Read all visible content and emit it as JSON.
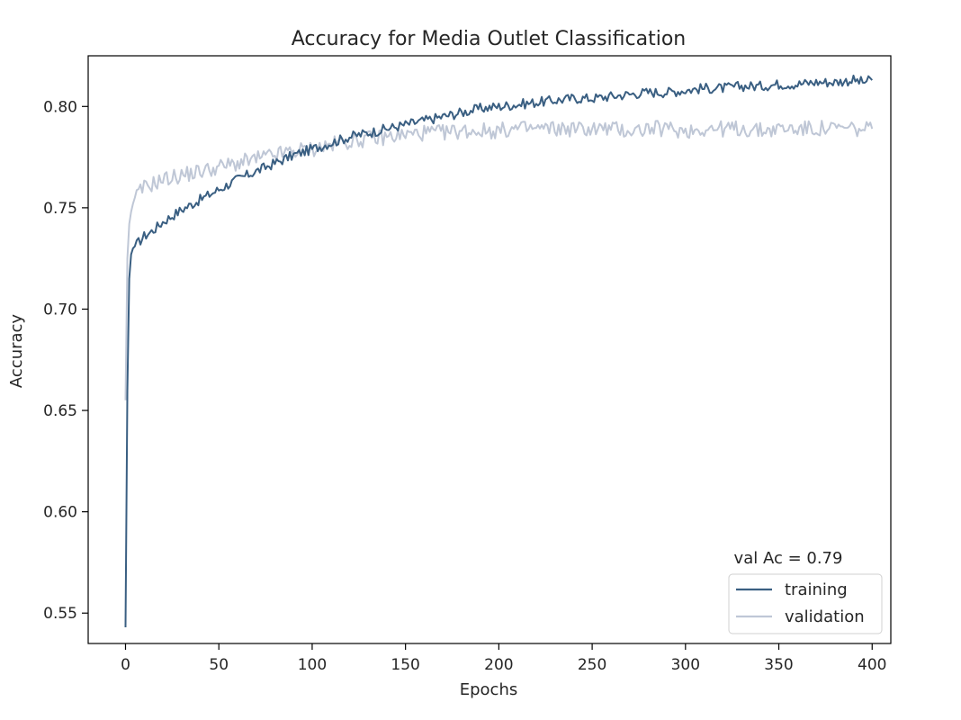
{
  "chart_data": {
    "type": "line",
    "title": "Accuracy for Media Outlet Classification",
    "xlabel": "Epochs",
    "ylabel": "Accuracy",
    "xlim": [
      -20,
      410
    ],
    "ylim": [
      0.535,
      0.825
    ],
    "x_ticks": [
      0,
      50,
      100,
      150,
      200,
      250,
      300,
      350,
      400
    ],
    "y_ticks": [
      0.55,
      0.6,
      0.65,
      0.7,
      0.75,
      0.8
    ],
    "grid": false,
    "legend": {
      "placement": "lower-right",
      "title": "val Ac = 0.79"
    },
    "series": [
      {
        "name": "training",
        "color": "#3a5f82",
        "x": [
          0,
          1,
          2,
          3,
          4,
          5,
          8,
          10,
          15,
          20,
          25,
          30,
          40,
          50,
          60,
          70,
          80,
          90,
          100,
          110,
          120,
          130,
          140,
          150,
          160,
          170,
          180,
          190,
          200,
          210,
          220,
          230,
          240,
          250,
          260,
          270,
          280,
          290,
          300,
          310,
          320,
          330,
          340,
          350,
          360,
          370,
          380,
          390,
          395,
          400
        ],
        "values": [
          0.543,
          0.66,
          0.715,
          0.727,
          0.73,
          0.731,
          0.734,
          0.736,
          0.739,
          0.743,
          0.746,
          0.749,
          0.754,
          0.759,
          0.764,
          0.768,
          0.772,
          0.776,
          0.779,
          0.782,
          0.785,
          0.787,
          0.789,
          0.791,
          0.793,
          0.795,
          0.797,
          0.799,
          0.8,
          0.801,
          0.802,
          0.803,
          0.804,
          0.804,
          0.805,
          0.806,
          0.807,
          0.807,
          0.808,
          0.809,
          0.809,
          0.81,
          0.81,
          0.811,
          0.811,
          0.812,
          0.812,
          0.813,
          0.812,
          0.813
        ]
      },
      {
        "name": "validation",
        "color": "#bfc7d6",
        "x": [
          0,
          1,
          2,
          3,
          4,
          5,
          8,
          10,
          15,
          20,
          25,
          30,
          40,
          50,
          60,
          70,
          80,
          90,
          100,
          110,
          120,
          130,
          140,
          150,
          160,
          170,
          180,
          190,
          200,
          210,
          220,
          230,
          240,
          250,
          260,
          270,
          280,
          290,
          300,
          310,
          320,
          330,
          340,
          350,
          360,
          370,
          380,
          390,
          395,
          400
        ],
        "values": [
          0.655,
          0.725,
          0.742,
          0.748,
          0.752,
          0.755,
          0.758,
          0.76,
          0.762,
          0.764,
          0.765,
          0.766,
          0.768,
          0.77,
          0.772,
          0.774,
          0.776,
          0.778,
          0.779,
          0.781,
          0.783,
          0.784,
          0.785,
          0.786,
          0.787,
          0.787,
          0.788,
          0.788,
          0.788,
          0.789,
          0.789,
          0.789,
          0.789,
          0.789,
          0.789,
          0.788,
          0.789,
          0.789,
          0.788,
          0.789,
          0.789,
          0.789,
          0.788,
          0.789,
          0.789,
          0.789,
          0.789,
          0.789,
          0.788,
          0.789
        ]
      }
    ]
  }
}
